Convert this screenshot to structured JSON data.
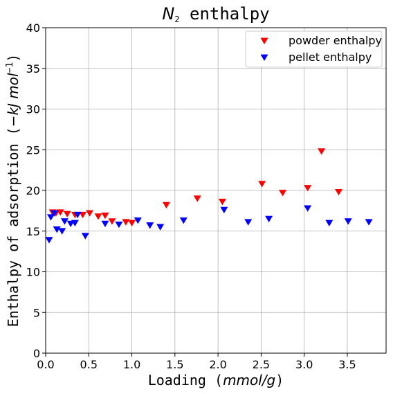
{
  "chart_data": {
    "type": "scatter",
    "title": {
      "symbol": "N",
      "subscript": "2",
      "text": " enthalpy"
    },
    "xlabel": {
      "text": "Loading (",
      "math": "mmol/g",
      "close": ")"
    },
    "ylabel": {
      "text": "Enthalpy of adsorption (",
      "math": "−kJ mol",
      "sup": "−1",
      "close": ")"
    },
    "xlim": [
      0,
      3.95
    ],
    "ylim": [
      0,
      40
    ],
    "xticks": [
      0,
      0.5,
      1,
      1.5,
      2,
      2.5,
      3,
      3.5
    ],
    "xtick_labels": [
      "0.0",
      "0.5",
      "1.0",
      "1.5",
      "2.0",
      "2.5",
      "3.0",
      "3.5"
    ],
    "yticks": [
      0,
      5,
      10,
      15,
      20,
      25,
      30,
      35,
      40
    ],
    "ytick_labels": [
      "0",
      "5",
      "10",
      "15",
      "20",
      "25",
      "30",
      "35",
      "40"
    ],
    "grid": true,
    "legend_position": "top-right",
    "marker": "triangle-down",
    "series": [
      {
        "name": "powder enthalpy",
        "color": "#ff0000",
        "x": [
          0.08,
          0.12,
          0.17,
          0.25,
          0.34,
          0.43,
          0.51,
          0.61,
          0.69,
          0.77,
          0.93,
          1.0,
          1.4,
          1.76,
          2.05,
          2.51,
          2.75,
          3.04,
          3.2,
          3.4
        ],
        "y": [
          17.3,
          17.2,
          17.3,
          17.1,
          17.0,
          17.0,
          17.2,
          16.8,
          16.9,
          16.2,
          16.1,
          16.0,
          18.2,
          19.0,
          18.6,
          20.8,
          19.7,
          20.3,
          24.8,
          19.8
        ]
      },
      {
        "name": "pellet enthalpy",
        "color": "#0000ff",
        "x": [
          0.04,
          0.06,
          0.1,
          0.13,
          0.19,
          0.22,
          0.29,
          0.34,
          0.37,
          0.46,
          0.69,
          0.85,
          1.07,
          1.21,
          1.33,
          1.6,
          2.07,
          2.35,
          2.59,
          3.04,
          3.29,
          3.51,
          3.75
        ],
        "y": [
          13.9,
          16.7,
          17.2,
          15.2,
          15.0,
          16.2,
          15.9,
          16.0,
          17.0,
          14.4,
          15.9,
          15.8,
          16.3,
          15.7,
          15.5,
          16.3,
          17.6,
          16.1,
          16.5,
          17.8,
          16.0,
          16.2,
          16.1
        ]
      }
    ]
  }
}
